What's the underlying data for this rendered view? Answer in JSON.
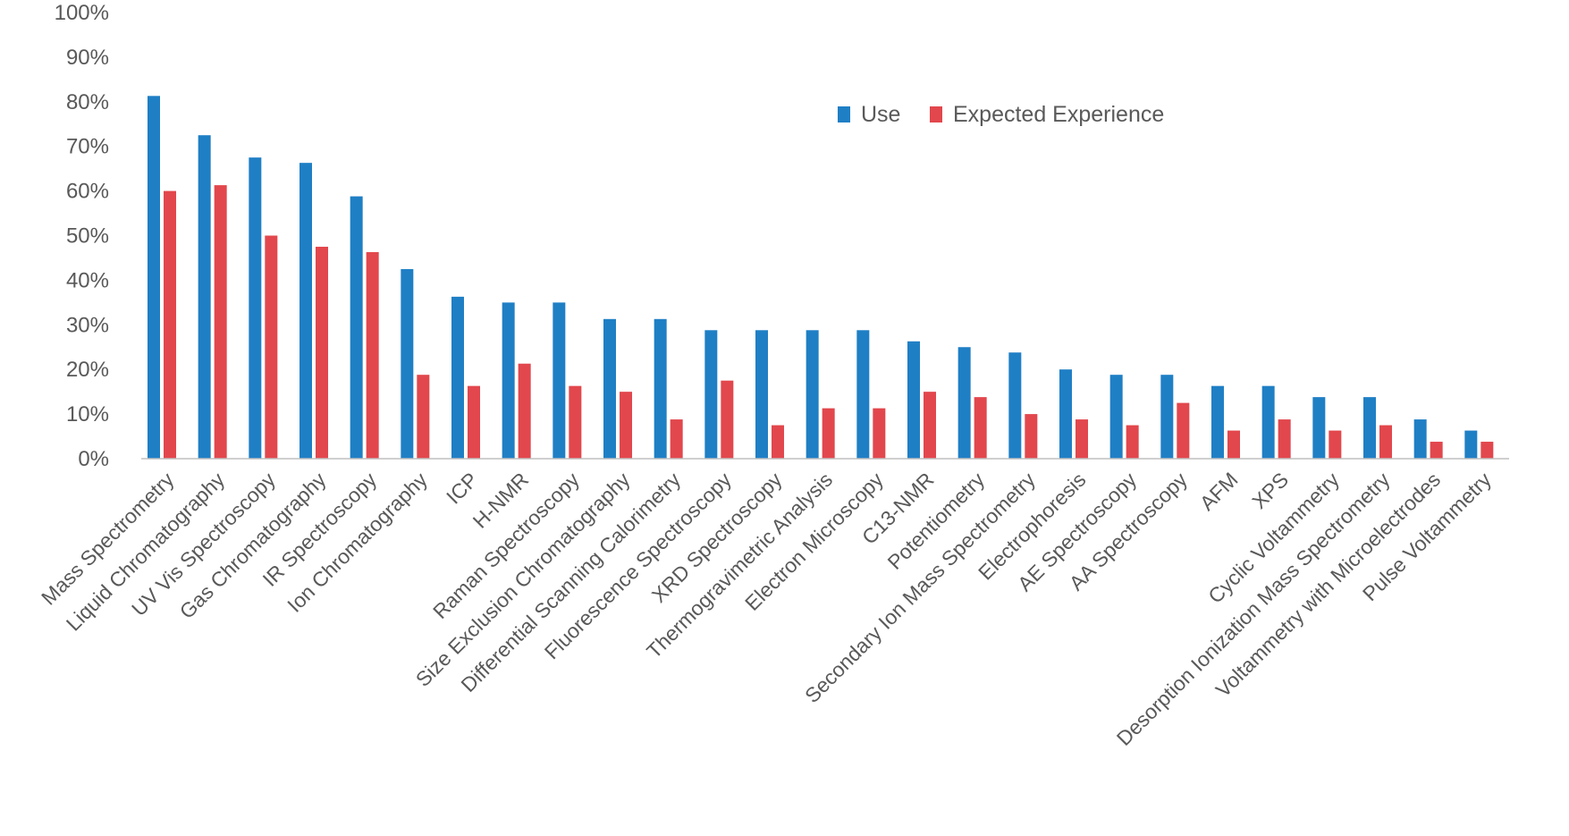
{
  "chart_data": {
    "type": "bar",
    "title": "",
    "xlabel": "",
    "ylabel": "",
    "ylim": [
      0,
      100
    ],
    "yticks": [
      0,
      10,
      20,
      30,
      40,
      50,
      60,
      70,
      80,
      90,
      100
    ],
    "ytick_format": "percent",
    "grid": false,
    "legend_position": "top-right",
    "colors": {
      "Use": "#1f7fc5",
      "Expected Experience": "#e2474d",
      "axis": "#bfbfbf",
      "text": "#595959"
    },
    "categories": [
      "Mass Spectrometry",
      "Liquid Chromatography",
      "UV Vis Spectroscopy",
      "Gas Chromatography",
      "IR Spectroscopy",
      "Ion Chromatography",
      "ICP",
      "H-NMR",
      "Raman Spectroscopy",
      "Size Exclusion Chromatography",
      "Differential Scanning Calorimetry",
      "Fluorescence Spectroscopy",
      "XRD Spectroscopy",
      "Thermogravimetric Analysis",
      "Electron Microscopy",
      "C13-NMR",
      "Potentiometry",
      "Secondary Ion Mass Spectrometry",
      "Electrophoresis",
      "AE Spectroscopy",
      "AA Spectroscopy",
      "AFM",
      "XPS",
      "Cyclic Voltammetry",
      "Desorption Ionization Mass Spectrometry",
      "Voltammetry with Microelectrodes",
      "Pulse Voltammetry"
    ],
    "series": [
      {
        "name": "Use",
        "values": [
          81.3,
          72.5,
          67.5,
          66.3,
          58.8,
          42.5,
          36.3,
          35.0,
          35.0,
          31.3,
          31.3,
          28.8,
          28.8,
          28.8,
          28.8,
          26.3,
          25.0,
          23.8,
          20.0,
          18.8,
          18.8,
          16.3,
          16.3,
          13.8,
          13.8,
          8.8,
          6.3
        ]
      },
      {
        "name": "Expected Experience",
        "values": [
          60.0,
          61.3,
          50.0,
          47.5,
          46.3,
          18.8,
          16.3,
          21.3,
          16.3,
          15.0,
          8.8,
          17.5,
          7.5,
          11.3,
          11.3,
          15.0,
          13.8,
          10.0,
          8.8,
          7.5,
          12.5,
          6.3,
          8.8,
          6.3,
          7.5,
          3.8,
          3.8
        ]
      }
    ]
  }
}
